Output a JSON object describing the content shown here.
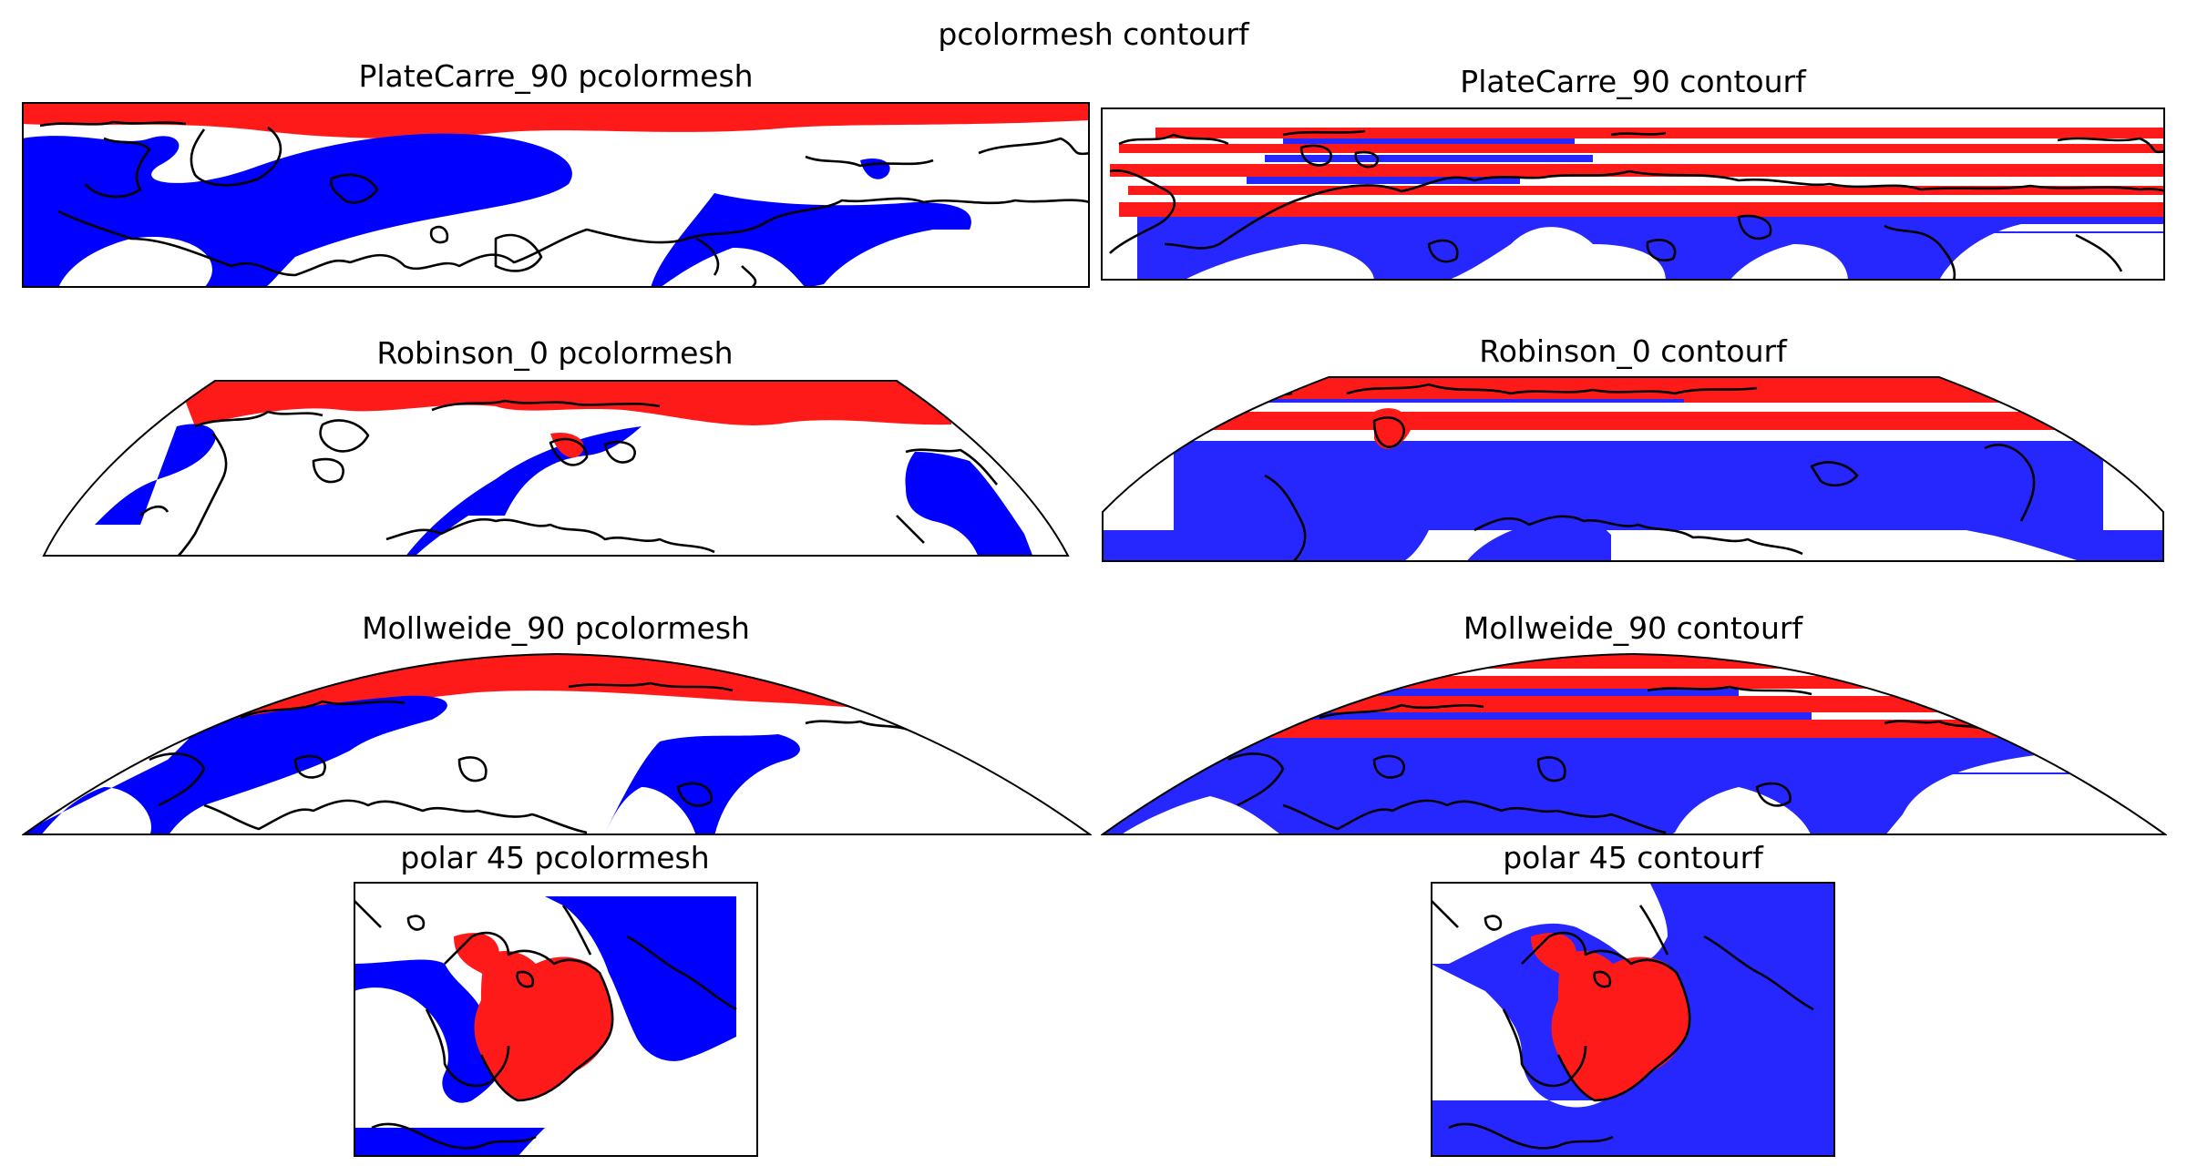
{
  "figure": {
    "suptitle": "pcolormesh contourf",
    "colors": {
      "positive": "#ff1a1a",
      "negative": "#0000ff",
      "negative_contourf": "#2626ff",
      "coastline": "#000000"
    }
  },
  "panels": [
    {
      "title": "PlateCarre_90 pcolormesh",
      "projection": "PlateCarree",
      "central_longitude": 90,
      "method": "pcolormesh"
    },
    {
      "title": "PlateCarre_90 contourf",
      "projection": "PlateCarree",
      "central_longitude": 90,
      "method": "contourf"
    },
    {
      "title": "Robinson_0 pcolormesh",
      "projection": "Robinson",
      "central_longitude": 0,
      "method": "pcolormesh"
    },
    {
      "title": "Robinson_0 contourf",
      "projection": "Robinson",
      "central_longitude": 0,
      "method": "contourf"
    },
    {
      "title": "Mollweide_90 pcolormesh",
      "projection": "Mollweide",
      "central_longitude": 90,
      "method": "pcolormesh"
    },
    {
      "title": "Mollweide_90 contourf",
      "projection": "Mollweide",
      "central_longitude": 90,
      "method": "contourf"
    },
    {
      "title": "polar 45 pcolormesh",
      "projection": "NorthPolarStereo",
      "central_longitude": 45,
      "method": "pcolormesh"
    },
    {
      "title": "polar 45 contourf",
      "projection": "NorthPolarStereo",
      "central_longitude": 45,
      "method": "contourf"
    }
  ]
}
